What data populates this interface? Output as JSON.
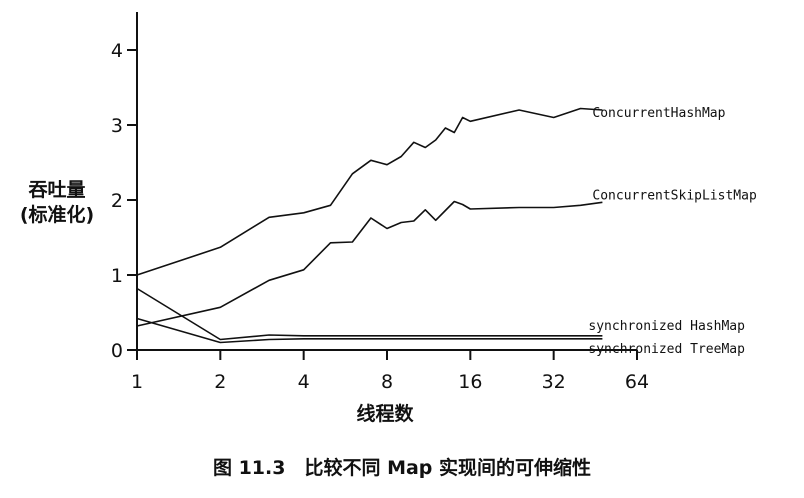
{
  "chart_data": {
    "type": "line",
    "title": "",
    "xlabel": "线程数",
    "ylabel_line1": "吞吐量",
    "ylabel_line2": "(标准化)",
    "x_scale": "log2",
    "x_ticks": [
      1,
      2,
      4,
      8,
      16,
      32,
      64
    ],
    "x_tick_labels": [
      "1",
      "2",
      "4",
      "8",
      "16",
      "32",
      "64"
    ],
    "xlim": [
      1,
      64
    ],
    "y_ticks": [
      0,
      1,
      2,
      3,
      4
    ],
    "y_tick_labels": [
      "0",
      "1",
      "2",
      "3",
      "4"
    ],
    "ylim": [
      0,
      4.5
    ],
    "grid": false,
    "series": [
      {
        "name": "ConcurrentHashMap",
        "points": [
          [
            1,
            1.0
          ],
          [
            2,
            1.37
          ],
          [
            3,
            1.77
          ],
          [
            4,
            1.83
          ],
          [
            5,
            1.93
          ],
          [
            6,
            2.35
          ],
          [
            7,
            2.53
          ],
          [
            8,
            2.47
          ],
          [
            9,
            2.58
          ],
          [
            10,
            2.77
          ],
          [
            11,
            2.7
          ],
          [
            12,
            2.8
          ],
          [
            13,
            2.96
          ],
          [
            14,
            2.9
          ],
          [
            15,
            3.1
          ],
          [
            16,
            3.05
          ],
          [
            24,
            3.2
          ],
          [
            32,
            3.1
          ],
          [
            40,
            3.22
          ],
          [
            48,
            3.2
          ]
        ]
      },
      {
        "name": "ConcurrentSkipListMap",
        "points": [
          [
            1,
            0.32
          ],
          [
            2,
            0.57
          ],
          [
            3,
            0.93
          ],
          [
            4,
            1.07
          ],
          [
            5,
            1.43
          ],
          [
            6,
            1.44
          ],
          [
            7,
            1.76
          ],
          [
            8,
            1.62
          ],
          [
            9,
            1.7
          ],
          [
            10,
            1.72
          ],
          [
            11,
            1.87
          ],
          [
            12,
            1.73
          ],
          [
            13,
            1.86
          ],
          [
            14,
            1.98
          ],
          [
            15,
            1.94
          ],
          [
            16,
            1.88
          ],
          [
            24,
            1.9
          ],
          [
            32,
            1.9
          ],
          [
            40,
            1.93
          ],
          [
            48,
            1.97
          ]
        ]
      },
      {
        "name": "synchronized HashMap",
        "points": [
          [
            1,
            0.82
          ],
          [
            2,
            0.14
          ],
          [
            3,
            0.2
          ],
          [
            4,
            0.19
          ],
          [
            8,
            0.19
          ],
          [
            16,
            0.19
          ],
          [
            32,
            0.19
          ],
          [
            48,
            0.19
          ]
        ]
      },
      {
        "name": "synchronized TreeMap",
        "points": [
          [
            1,
            0.42
          ],
          [
            2,
            0.1
          ],
          [
            3,
            0.14
          ],
          [
            4,
            0.15
          ],
          [
            8,
            0.15
          ],
          [
            16,
            0.15
          ],
          [
            32,
            0.15
          ],
          [
            48,
            0.15
          ]
        ]
      }
    ]
  },
  "caption": "图 11.3　比较不同 Map 实现间的可伸缩性"
}
